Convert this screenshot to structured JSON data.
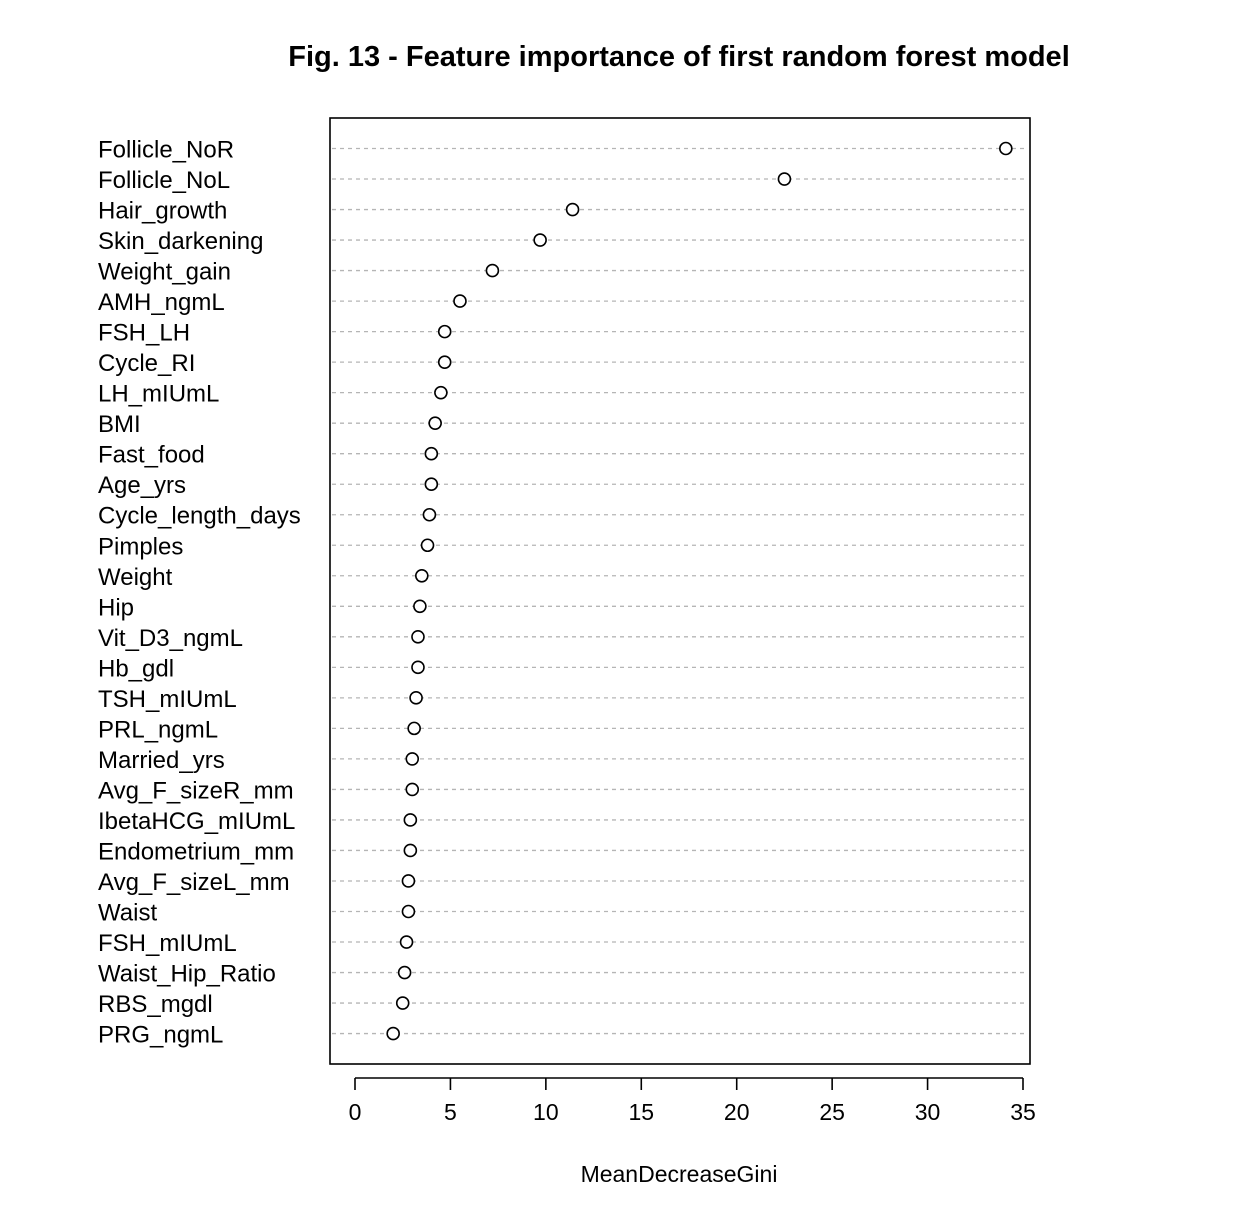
{
  "chart_data": {
    "type": "scatter",
    "subtype": "dotchart",
    "title": "Fig. 13 - Feature importance of first random forest model",
    "xlabel": "MeanDecreaseGini",
    "ylabel": "",
    "xlim": [
      0,
      35
    ],
    "x_ticks": [
      "0",
      "5",
      "10",
      "15",
      "20",
      "25",
      "30",
      "35"
    ],
    "grid": "dotted horizontal guide per category",
    "point_style": "open circle",
    "categories": [
      "Follicle_NoR",
      "Follicle_NoL",
      "Hair_growth",
      "Skin_darkening",
      "Weight_gain",
      "AMH_ngmL",
      "FSH_LH",
      "Cycle_RI",
      "LH_mIUmL",
      "BMI",
      "Fast_food",
      "Age_yrs",
      "Cycle_length_days",
      "Pimples",
      "Weight",
      "Hip",
      "Vit_D3_ngmL",
      "Hb_gdl",
      "TSH_mIUmL",
      "PRL_ngmL",
      "Married_yrs",
      "Avg_F_sizeR_mm",
      "IbetaHCG_mIUmL",
      "Endometrium_mm",
      "Avg_F_sizeL_mm",
      "Waist",
      "FSH_mIUmL",
      "Waist_Hip_Ratio",
      "RBS_mgdl",
      "PRG_ngmL"
    ],
    "values": [
      34.1,
      22.5,
      11.4,
      9.7,
      7.2,
      5.5,
      4.7,
      4.7,
      4.5,
      4.2,
      4.0,
      4.0,
      3.9,
      3.8,
      3.5,
      3.4,
      3.3,
      3.3,
      3.2,
      3.1,
      3.0,
      3.0,
      2.9,
      2.9,
      2.8,
      2.8,
      2.7,
      2.6,
      2.5,
      2.0
    ]
  }
}
